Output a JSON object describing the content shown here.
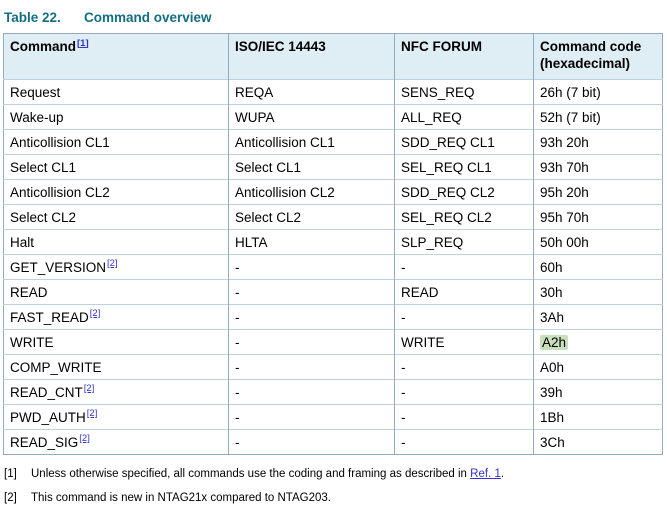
{
  "title": {
    "label": "Table 22.",
    "text": "Command overview"
  },
  "colors": {
    "accent_teal": "#136e84",
    "link_blue": "#3333cc",
    "header_bg": "#dfedf5",
    "row_line": "#bcd2e2",
    "outer_border": "#93abc0",
    "highlight_green": "#c9deba"
  },
  "table": {
    "header": {
      "command": "Command",
      "command_sup": "[1]",
      "iso": "ISO/IEC 14443",
      "nfc": "NFC FORUM",
      "code": "Command code (hexadecimal)"
    },
    "rows": [
      {
        "command": "Request",
        "sup": "",
        "iso": "REQA",
        "nfc": "SENS_REQ",
        "code": "26h (7 bit)",
        "highlight": false
      },
      {
        "command": "Wake-up",
        "sup": "",
        "iso": "WUPA",
        "nfc": "ALL_REQ",
        "code": "52h (7 bit)",
        "highlight": false
      },
      {
        "command": "Anticollision CL1",
        "sup": "",
        "iso": "Anticollision CL1",
        "nfc": "SDD_REQ CL1",
        "code": "93h 20h",
        "highlight": false
      },
      {
        "command": "Select CL1",
        "sup": "",
        "iso": "Select CL1",
        "nfc": "SEL_REQ CL1",
        "code": "93h 70h",
        "highlight": false
      },
      {
        "command": "Anticollision CL2",
        "sup": "",
        "iso": "Anticollision CL2",
        "nfc": "SDD_REQ CL2",
        "code": "95h 20h",
        "highlight": false
      },
      {
        "command": "Select CL2",
        "sup": "",
        "iso": "Select CL2",
        "nfc": "SEL_REQ CL2",
        "code": "95h 70h",
        "highlight": false
      },
      {
        "command": "Halt",
        "sup": "",
        "iso": "HLTA",
        "nfc": "SLP_REQ",
        "code": "50h 00h",
        "highlight": false
      },
      {
        "command": "GET_VERSION",
        "sup": "[2]",
        "iso": "-",
        "nfc": "-",
        "code": "60h",
        "highlight": false
      },
      {
        "command": "READ",
        "sup": "",
        "iso": "-",
        "nfc": "READ",
        "code": "30h",
        "highlight": false
      },
      {
        "command": "FAST_READ",
        "sup": "[2]",
        "iso": "-",
        "nfc": "-",
        "code": "3Ah",
        "highlight": false
      },
      {
        "command": "WRITE",
        "sup": "",
        "iso": "-",
        "nfc": "WRITE",
        "code": "A2h",
        "highlight": true
      },
      {
        "command": "COMP_WRITE",
        "sup": "",
        "iso": "-",
        "nfc": "-",
        "code": "A0h",
        "highlight": false
      },
      {
        "command": "READ_CNT",
        "sup": "[2]",
        "iso": "-",
        "nfc": "-",
        "code": "39h",
        "highlight": false
      },
      {
        "command": "PWD_AUTH",
        "sup": "[2]",
        "iso": "-",
        "nfc": "-",
        "code": "1Bh",
        "highlight": false
      },
      {
        "command": "READ_SIG",
        "sup": "[2]",
        "iso": "-",
        "nfc": "-",
        "code": "3Ch",
        "highlight": false
      }
    ]
  },
  "footnotes": [
    {
      "marker": "[1]",
      "text_before": "Unless otherwise specified, all commands use the coding and framing as described in ",
      "link": "Ref. 1",
      "text_after": "."
    },
    {
      "marker": "[2]",
      "text_before": "This command is new in NTAG21x compared to NTAG203.",
      "link": "",
      "text_after": ""
    }
  ]
}
